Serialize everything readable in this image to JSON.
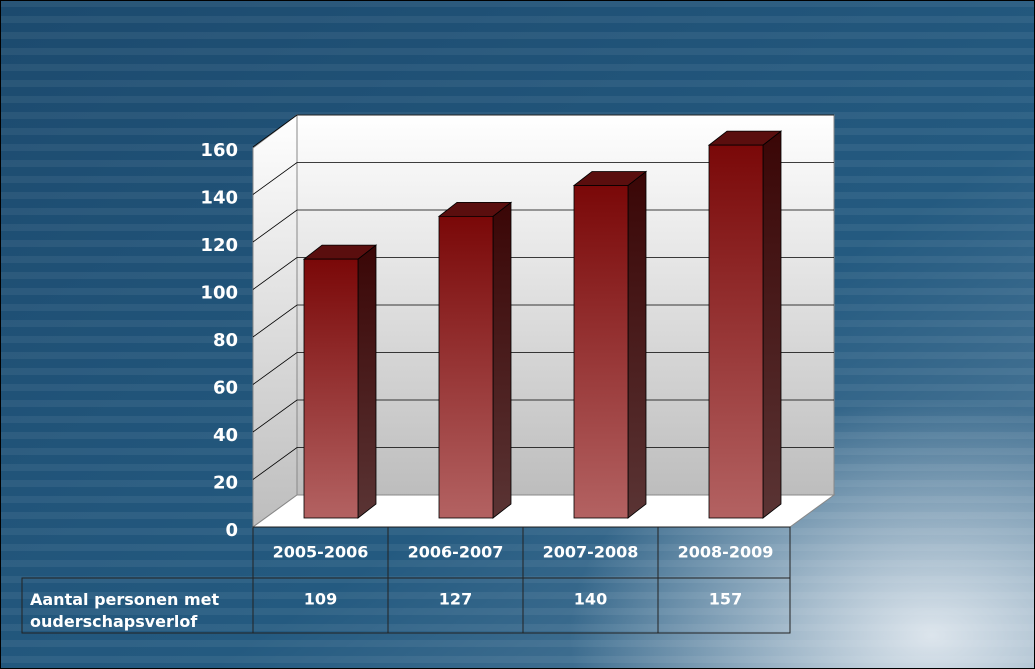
{
  "chart_data": {
    "type": "bar3d",
    "categories": [
      "2005-2006",
      "2006-2007",
      "2007-2008",
      "2008-2009"
    ],
    "series": [
      {
        "name": "Aantal personen met ouderschapsverlof",
        "color": "#8b1a1a",
        "values": [
          109,
          127,
          140,
          157
        ]
      }
    ],
    "ylim": [
      0,
      160
    ],
    "yticks": [
      0,
      20,
      40,
      60,
      80,
      100,
      120,
      140,
      160
    ],
    "grid": true,
    "data_table": true
  }
}
